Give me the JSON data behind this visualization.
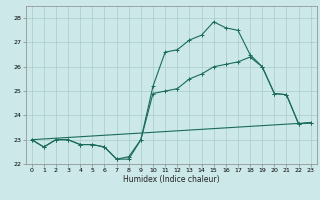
{
  "title": "",
  "xlabel": "Humidex (Indice chaleur)",
  "background_color": "#cce8e8",
  "grid_color": "#aacccc",
  "line_color": "#1a6b5a",
  "xlim": [
    -0.5,
    23.5
  ],
  "ylim": [
    22.0,
    28.5
  ],
  "xticks": [
    0,
    1,
    2,
    3,
    4,
    5,
    6,
    7,
    8,
    9,
    10,
    11,
    12,
    13,
    14,
    15,
    16,
    17,
    18,
    19,
    20,
    21,
    22,
    23
  ],
  "yticks": [
    22,
    23,
    24,
    25,
    26,
    27,
    28
  ],
  "line1_x": [
    0,
    1,
    2,
    3,
    4,
    5,
    6,
    7,
    8,
    9,
    10,
    11,
    12,
    13,
    14,
    15,
    16,
    17,
    18,
    19,
    20,
    21,
    22,
    23
  ],
  "line1_y": [
    23.0,
    22.7,
    23.0,
    23.0,
    22.8,
    22.8,
    22.7,
    22.2,
    22.2,
    23.0,
    25.2,
    26.6,
    26.7,
    27.1,
    27.3,
    27.85,
    27.6,
    27.5,
    26.5,
    26.0,
    24.9,
    24.85,
    23.65,
    23.7
  ],
  "line2_x": [
    0,
    1,
    2,
    3,
    4,
    5,
    6,
    7,
    8,
    9,
    10,
    11,
    12,
    13,
    14,
    15,
    16,
    17,
    18,
    19,
    20,
    21,
    22,
    23
  ],
  "line2_y": [
    23.0,
    22.7,
    23.0,
    23.0,
    22.8,
    22.8,
    22.7,
    22.2,
    22.3,
    23.0,
    24.9,
    25.0,
    25.1,
    25.5,
    25.7,
    26.0,
    26.1,
    26.2,
    26.4,
    26.0,
    24.9,
    24.85,
    23.65,
    23.7
  ],
  "line3_x": [
    0,
    23
  ],
  "line3_y": [
    23.0,
    23.7
  ]
}
